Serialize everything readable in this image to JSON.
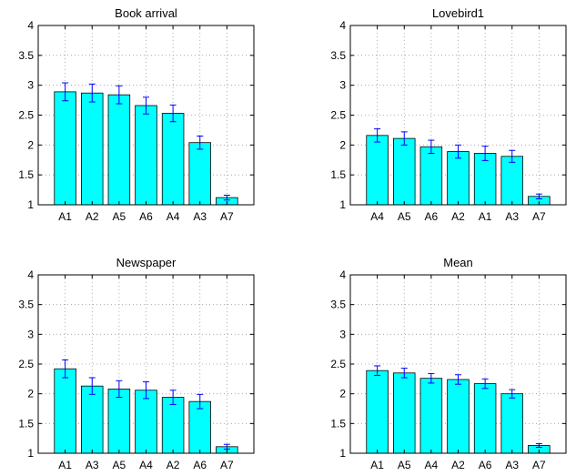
{
  "chart_data": [
    {
      "type": "bar",
      "title": "Book arrival",
      "categories": [
        "A1",
        "A2",
        "A5",
        "A6",
        "A4",
        "A3",
        "A7"
      ],
      "values": [
        2.89,
        2.87,
        2.84,
        2.66,
        2.53,
        2.04,
        1.12
      ],
      "error": [
        0.15,
        0.15,
        0.15,
        0.14,
        0.14,
        0.11,
        0.04
      ],
      "xlabel": "",
      "ylabel": "",
      "ylim": [
        1,
        4
      ],
      "yticks": [
        "1",
        "1.5",
        "2",
        "2.5",
        "3",
        "3.5",
        "4"
      ],
      "grid": true,
      "bar_color": "#00ffff",
      "error_color": "#0000ff"
    },
    {
      "type": "bar",
      "title": "Lovebird1",
      "categories": [
        "A4",
        "A5",
        "A6",
        "A2",
        "A1",
        "A3",
        "A7"
      ],
      "values": [
        2.16,
        2.11,
        1.97,
        1.89,
        1.86,
        1.81,
        1.14
      ],
      "error": [
        0.11,
        0.11,
        0.11,
        0.11,
        0.12,
        0.1,
        0.04
      ],
      "xlabel": "",
      "ylabel": "",
      "ylim": [
        1,
        4
      ],
      "yticks": [
        "1",
        "1.5",
        "2",
        "2.5",
        "3",
        "3.5",
        "4"
      ],
      "grid": true,
      "bar_color": "#00ffff",
      "error_color": "#0000ff"
    },
    {
      "type": "bar",
      "title": "Newspaper",
      "categories": [
        "A1",
        "A3",
        "A5",
        "A4",
        "A2",
        "A6",
        "A7"
      ],
      "values": [
        2.42,
        2.13,
        2.08,
        2.06,
        1.94,
        1.87,
        1.11
      ],
      "error": [
        0.15,
        0.14,
        0.14,
        0.14,
        0.12,
        0.12,
        0.04
      ],
      "xlabel": "",
      "ylabel": "",
      "ylim": [
        1,
        4
      ],
      "yticks": [
        "1",
        "1.5",
        "2",
        "2.5",
        "3",
        "3.5",
        "4"
      ],
      "grid": true,
      "bar_color": "#00ffff",
      "error_color": "#0000ff"
    },
    {
      "type": "bar",
      "title": "Mean",
      "categories": [
        "A1",
        "A5",
        "A4",
        "A2",
        "A6",
        "A3",
        "A7"
      ],
      "values": [
        2.39,
        2.35,
        2.26,
        2.24,
        2.17,
        2.0,
        1.13
      ],
      "error": [
        0.08,
        0.08,
        0.08,
        0.08,
        0.08,
        0.07,
        0.03
      ],
      "xlabel": "",
      "ylabel": "",
      "ylim": [
        1,
        4
      ],
      "yticks": [
        "1",
        "1.5",
        "2",
        "2.5",
        "3",
        "3.5",
        "4"
      ],
      "grid": true,
      "bar_color": "#00ffff",
      "error_color": "#0000ff"
    }
  ]
}
